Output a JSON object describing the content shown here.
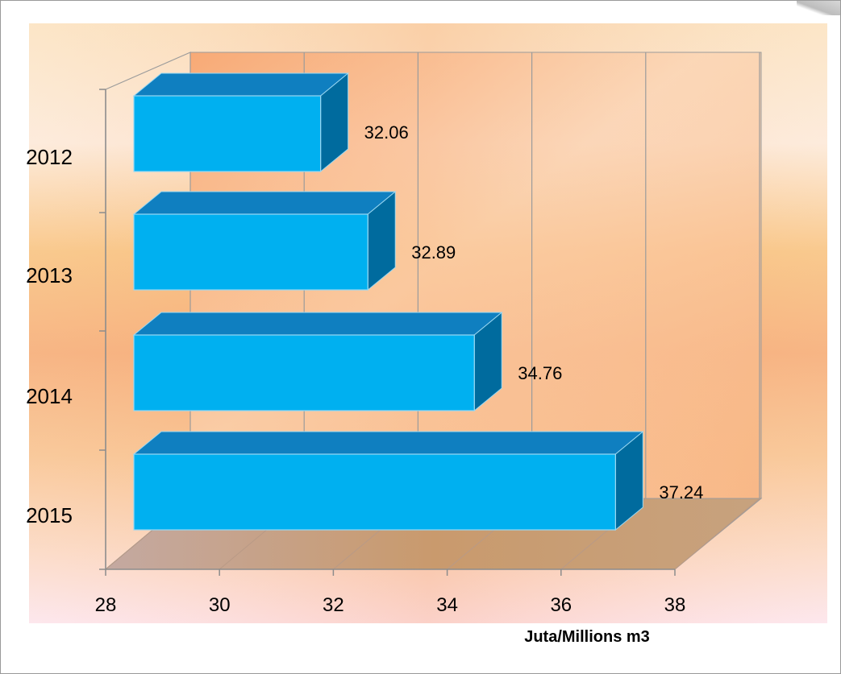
{
  "chart_data": {
    "type": "bar",
    "orientation": "horizontal",
    "style": "3d",
    "categories": [
      "2012",
      "2013",
      "2014",
      "2015"
    ],
    "values": [
      32.06,
      32.89,
      34.76,
      37.24
    ],
    "data_labels": [
      "32.06",
      "32.89",
      "34.76",
      "37.24"
    ],
    "xlim": [
      28,
      38
    ],
    "xticks": [
      "28",
      "30",
      "32",
      "34",
      "36",
      "38"
    ],
    "xlabel": "Juta/Millions m3",
    "ylabel": "",
    "title": "",
    "grid": true,
    "legend": false,
    "colors": {
      "bar_front": "#00b0f0",
      "bar_top": "#0f7fc0",
      "bar_side": "#006b9e",
      "bar_edge": "#9ad8f2",
      "floor": "#c9a98c",
      "wall_line": "#9b9b9b"
    }
  }
}
